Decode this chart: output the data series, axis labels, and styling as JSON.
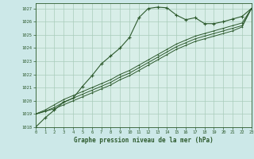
{
  "title": "Graphe pression niveau de la mer (hPa)",
  "bg_color": "#cce8e8",
  "plot_bg": "#d8eee8",
  "grid_color": "#aaccbb",
  "line_color": "#2d5a2d",
  "xlim": [
    0,
    23
  ],
  "ylim": [
    1018,
    1027.4
  ],
  "yticks": [
    1018,
    1019,
    1020,
    1021,
    1022,
    1023,
    1024,
    1025,
    1026,
    1027
  ],
  "xticks": [
    0,
    1,
    2,
    3,
    4,
    5,
    6,
    7,
    8,
    9,
    10,
    11,
    12,
    13,
    14,
    15,
    16,
    17,
    18,
    19,
    20,
    21,
    22,
    23
  ],
  "series1_x": [
    0,
    1,
    2,
    3,
    4,
    5,
    6,
    7,
    8,
    9,
    10,
    11,
    12,
    13,
    14,
    15,
    16,
    17,
    18,
    19,
    20,
    21,
    22,
    23
  ],
  "series1_y": [
    1018.0,
    1018.7,
    1019.3,
    1019.9,
    1020.2,
    1021.1,
    1021.9,
    1022.8,
    1023.4,
    1024.0,
    1024.8,
    1026.3,
    1027.0,
    1027.1,
    1027.05,
    1026.5,
    1026.15,
    1026.3,
    1025.85,
    1025.85,
    1026.0,
    1026.2,
    1026.4,
    1027.0
  ],
  "series2_x": [
    0,
    1,
    2,
    3,
    4,
    5,
    6,
    7,
    8,
    9,
    10,
    11,
    12,
    13,
    14,
    15,
    16,
    17,
    18,
    19,
    20,
    21,
    22,
    23
  ],
  "series2_y": [
    1019.0,
    1019.3,
    1019.7,
    1020.1,
    1020.4,
    1020.7,
    1021.0,
    1021.3,
    1021.6,
    1022.0,
    1022.3,
    1022.7,
    1023.1,
    1023.5,
    1023.9,
    1024.3,
    1024.6,
    1024.9,
    1025.1,
    1025.3,
    1025.5,
    1025.7,
    1025.9,
    1027.0
  ],
  "series3_x": [
    0,
    1,
    2,
    3,
    4,
    5,
    6,
    7,
    8,
    9,
    10,
    11,
    12,
    13,
    14,
    15,
    16,
    17,
    18,
    19,
    20,
    21,
    22,
    23
  ],
  "series3_y": [
    1019.0,
    1019.2,
    1019.5,
    1019.9,
    1020.2,
    1020.5,
    1020.8,
    1021.1,
    1021.4,
    1021.8,
    1022.1,
    1022.5,
    1022.9,
    1023.3,
    1023.7,
    1024.1,
    1024.4,
    1024.7,
    1024.9,
    1025.1,
    1025.3,
    1025.5,
    1025.7,
    1027.0
  ],
  "series4_x": [
    0,
    1,
    2,
    3,
    4,
    5,
    6,
    7,
    8,
    9,
    10,
    11,
    12,
    13,
    14,
    15,
    16,
    17,
    18,
    19,
    20,
    21,
    22,
    23
  ],
  "series4_y": [
    1019.0,
    1019.2,
    1019.4,
    1019.7,
    1020.0,
    1020.3,
    1020.6,
    1020.9,
    1021.2,
    1021.6,
    1021.9,
    1022.3,
    1022.7,
    1023.1,
    1023.5,
    1023.9,
    1024.2,
    1024.5,
    1024.7,
    1024.9,
    1025.1,
    1025.3,
    1025.6,
    1027.0
  ]
}
